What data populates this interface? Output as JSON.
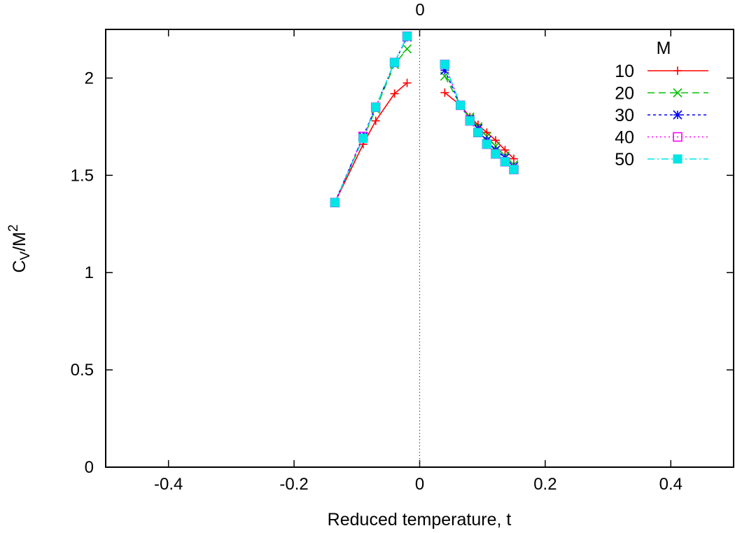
{
  "chart_data": {
    "type": "line",
    "title": "",
    "xlabel": "Reduced temperature, t",
    "ylabel_main": "C",
    "ylabel_sub": "V",
    "ylabel_mid": "/M",
    "ylabel_sup": "2",
    "top_tick_label": "0",
    "xlim": [
      -0.5,
      0.5
    ],
    "ylim": [
      0,
      2.25
    ],
    "x_ticks": [
      -0.4,
      -0.2,
      0,
      0.2,
      0.4
    ],
    "x_tick_labels": [
      "-0.4",
      "-0.2",
      "0",
      "0.2",
      "0.4"
    ],
    "y_ticks": [
      0,
      0.5,
      1,
      1.5,
      2
    ],
    "y_tick_labels": [
      "0",
      "0.5",
      "1",
      "1.5",
      "2"
    ],
    "grid": false,
    "vertical_reference_line": 0,
    "legend": {
      "title": "M",
      "position": "top-right"
    },
    "series": [
      {
        "name": "10",
        "color": "#ff0000",
        "dash": "solid",
        "marker": "plus",
        "left": {
          "x": [
            -0.135,
            -0.09,
            -0.07,
            -0.04,
            -0.02
          ],
          "y": [
            1.36,
            1.66,
            1.78,
            1.92,
            1.975
          ]
        },
        "right": {
          "x": [
            0.04,
            0.065,
            0.08,
            0.093,
            0.107,
            0.121,
            0.136,
            0.15
          ],
          "y": [
            1.925,
            1.86,
            1.8,
            1.76,
            1.72,
            1.68,
            1.63,
            1.585
          ]
        }
      },
      {
        "name": "20",
        "color": "#00c000",
        "dash": "10,6",
        "marker": "cross",
        "left": {
          "x": [
            -0.135,
            -0.09,
            -0.07,
            -0.04,
            -0.02
          ],
          "y": [
            1.36,
            1.69,
            1.84,
            2.07,
            2.15
          ]
        },
        "right": {
          "x": [
            0.04,
            0.065,
            0.08,
            0.093,
            0.107,
            0.121,
            0.136,
            0.15
          ],
          "y": [
            2.01,
            1.86,
            1.8,
            1.75,
            1.7,
            1.65,
            1.6,
            1.555
          ]
        }
      },
      {
        "name": "30",
        "color": "#0000ff",
        "dash": "4,4",
        "marker": "asterisk",
        "left": {
          "x": [
            -0.135,
            -0.09,
            -0.07,
            -0.04,
            -0.02
          ],
          "y": [
            1.36,
            1.7,
            1.85,
            2.08,
            2.21
          ]
        },
        "right": {
          "x": [
            0.04,
            0.065,
            0.08,
            0.093,
            0.107,
            0.121,
            0.136,
            0.15
          ],
          "y": [
            2.04,
            1.86,
            1.79,
            1.74,
            1.68,
            1.63,
            1.59,
            1.545
          ]
        }
      },
      {
        "name": "40",
        "color": "#ff00ff",
        "dash": "2,4",
        "marker": "square-open",
        "left": {
          "x": [
            -0.135,
            -0.09,
            -0.07,
            -0.04,
            -0.02
          ],
          "y": [
            1.36,
            1.7,
            1.85,
            2.08,
            2.215
          ]
        },
        "right": {
          "x": [
            0.04,
            0.065,
            0.08,
            0.093,
            0.107,
            0.121,
            0.136,
            0.15
          ],
          "y": [
            2.07,
            1.86,
            1.78,
            1.72,
            1.66,
            1.61,
            1.57,
            1.53
          ]
        }
      },
      {
        "name": "50",
        "color": "#00e5e5",
        "dash": "10,4,2,4",
        "marker": "square-filled",
        "left": {
          "x": [
            -0.135,
            -0.09,
            -0.07,
            -0.04,
            -0.02
          ],
          "y": [
            1.36,
            1.69,
            1.85,
            2.08,
            2.215
          ]
        },
        "right": {
          "x": [
            0.04,
            0.065,
            0.08,
            0.093,
            0.107,
            0.121,
            0.136,
            0.15
          ],
          "y": [
            2.07,
            1.86,
            1.78,
            1.72,
            1.66,
            1.61,
            1.57,
            1.53
          ]
        }
      }
    ]
  }
}
